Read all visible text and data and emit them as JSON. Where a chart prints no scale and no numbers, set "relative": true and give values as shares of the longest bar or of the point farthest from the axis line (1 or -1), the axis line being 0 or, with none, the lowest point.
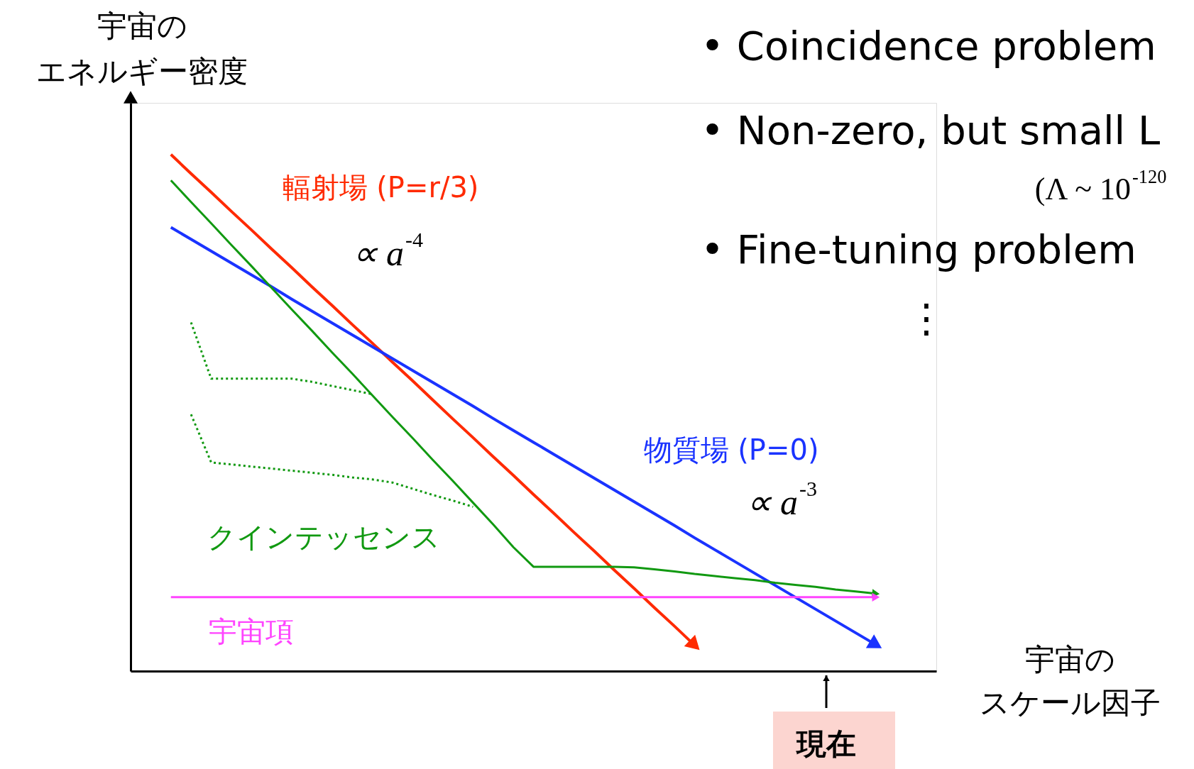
{
  "chart_data": {
    "type": "line",
    "relative": true,
    "marker": "none",
    "xlabel": "宇宙のスケール因子",
    "ylabel": "宇宙のエネルギー密度",
    "categories": [
      null,
      null,
      null,
      null,
      null,
      null,
      null,
      null,
      null,
      null,
      null,
      null,
      null,
      null,
      null,
      null,
      null,
      null,
      null,
      null,
      null,
      null,
      null,
      null,
      null,
      null,
      null,
      null,
      null,
      null,
      null,
      null,
      null,
      null,
      null,
      null,
      null
    ],
    "series": [
      {
        "name": "輻射場 (P=r/3)",
        "color": "#ff2a00",
        "line_style": "solid",
        "values": [
          1.0,
          0.963,
          0.927,
          0.89,
          0.854,
          0.817,
          0.781,
          0.744,
          0.708,
          0.671,
          0.635,
          0.598,
          0.562,
          0.525,
          0.488,
          0.452,
          0.415,
          0.379,
          0.342,
          0.306,
          0.269,
          0.233,
          0.196,
          0.16,
          0.123,
          0.087,
          0.05,
          null,
          null,
          null,
          null,
          null,
          null,
          null,
          null,
          null,
          null
        ]
      },
      {
        "name": "物質場 (P=0)",
        "color": "#1a33ff",
        "line_style": "solid",
        "values": [
          0.859,
          0.836,
          0.813,
          0.79,
          0.767,
          0.744,
          0.72,
          0.697,
          0.674,
          0.651,
          0.628,
          0.605,
          0.582,
          0.559,
          0.536,
          0.513,
          0.489,
          0.466,
          0.443,
          0.42,
          0.397,
          0.374,
          0.351,
          0.328,
          0.305,
          0.282,
          0.258,
          0.235,
          0.212,
          0.189,
          0.166,
          0.143,
          0.12,
          0.097,
          0.074,
          0.051,
          null
        ]
      },
      {
        "name": "クインテッセンス",
        "color": "#119911",
        "line_style": "solid",
        "values": [
          0.95,
          0.908,
          0.867,
          0.825,
          0.784,
          0.742,
          0.7,
          0.659,
          0.617,
          0.576,
          0.534,
          0.492,
          0.451,
          0.409,
          0.368,
          0.326,
          0.284,
          0.24,
          0.202,
          0.202,
          0.202,
          0.202,
          0.202,
          0.201,
          0.197,
          0.193,
          0.188,
          0.184,
          0.18,
          0.176,
          0.171,
          0.167,
          0.163,
          0.158,
          0.154,
          0.15,
          null
        ]
      },
      {
        "color": "#119911",
        "line_style": "dotted",
        "values": [
          null,
          0.675,
          0.566,
          0.566,
          0.566,
          0.566,
          0.566,
          0.56,
          0.552,
          0.544,
          0.536,
          null,
          null,
          null,
          null,
          null,
          null,
          null,
          null,
          null,
          null,
          null,
          null,
          null,
          null,
          null,
          null,
          null,
          null,
          null,
          null,
          null,
          null,
          null,
          null,
          null,
          null
        ]
      },
      {
        "color": "#119911",
        "line_style": "dotted",
        "values": [
          null,
          0.497,
          0.404,
          0.4,
          0.396,
          0.392,
          0.388,
          0.384,
          0.38,
          0.375,
          0.371,
          0.365,
          0.353,
          0.341,
          0.33,
          0.318,
          null,
          null,
          null,
          null,
          null,
          null,
          null,
          null,
          null,
          null,
          null,
          null,
          null,
          null,
          null,
          null,
          null,
          null,
          null,
          null,
          null
        ]
      },
      {
        "name": "宇宙項",
        "color": "#ff44ff",
        "line_style": "solid",
        "values": [
          0.143,
          0.143,
          0.143,
          0.143,
          0.143,
          0.143,
          0.143,
          0.143,
          0.143,
          0.143,
          0.143,
          0.143,
          0.143,
          0.143,
          0.143,
          0.143,
          0.143,
          0.143,
          0.143,
          0.143,
          0.143,
          0.143,
          0.143,
          0.143,
          0.143,
          0.143,
          0.143,
          0.143,
          0.143,
          0.143,
          0.143,
          0.143,
          0.143,
          0.143,
          0.143,
          0.143,
          null
        ]
      }
    ],
    "annotations": [
      "• Coincidence problem",
      "• Non-zero, but small L",
      "(Λ ~ 10$^{-120}$",
      "• Fine-tuning problem",
      "⋮",
      "∝ a$^{-4}$",
      "∝ a$^{-3}$",
      "現在"
    ]
  }
}
